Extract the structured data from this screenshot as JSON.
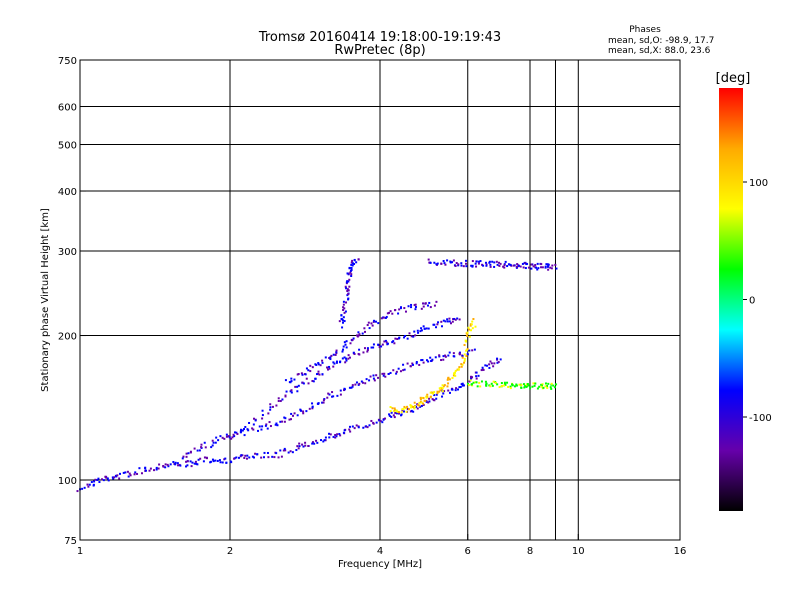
{
  "chart_data": {
    "type": "scatter",
    "title": "Tromsø 20160414 19:18:00-19:19:43",
    "subtitle": "RwPretec (8p)",
    "xlabel": "Frequency [MHz]",
    "ylabel": "Stationary phase Virtual Height [km]",
    "x_scale": "log",
    "y_scale": "log",
    "xlim": [
      1,
      16
    ],
    "ylim": [
      75,
      750
    ],
    "x_ticks": [
      1,
      2,
      4,
      6,
      8,
      10,
      16
    ],
    "y_ticks": [
      75,
      100,
      200,
      300,
      400,
      500,
      600,
      750
    ],
    "grid": true,
    "phase_info": {
      "header": "Phases",
      "o_line": "mean, sd,O: -98.9, 17.7",
      "x_line": "mean, sd,X: 88.0, 23.6"
    },
    "colorbar": {
      "label": "[deg]",
      "range": [
        -180,
        180
      ],
      "ticks": [
        100,
        0,
        -100
      ],
      "stops": [
        "#ff0000",
        "#ffaa00",
        "#ffff00",
        "#00ff00",
        "#00ffff",
        "#0000ff",
        "#6600aa",
        "#000000"
      ]
    },
    "traces": [
      {
        "name": "",
        "phase": -100,
        "points": [
          [
            1.0,
            96
          ],
          [
            1.1,
            100
          ],
          [
            1.2,
            102
          ],
          [
            1.35,
            105
          ],
          [
            1.5,
            108
          ],
          [
            1.65,
            108
          ],
          [
            1.8,
            110
          ],
          [
            2.0,
            110
          ],
          [
            2.2,
            112
          ],
          [
            2.5,
            113
          ],
          [
            2.8,
            118
          ],
          [
            3.1,
            122
          ],
          [
            3.4,
            126
          ],
          [
            3.8,
            131
          ],
          [
            4.2,
            136
          ],
          [
            4.6,
            140
          ],
          [
            5.0,
            146
          ],
          [
            5.5,
            153
          ],
          [
            6.0,
            160
          ],
          [
            6.5,
            170
          ],
          [
            7.0,
            180
          ]
        ]
      },
      {
        "name": "",
        "phase": -100,
        "points": [
          [
            1.6,
            112
          ],
          [
            1.8,
            118
          ],
          [
            2.0,
            124
          ],
          [
            2.3,
            128
          ],
          [
            2.6,
            134
          ],
          [
            2.9,
            142
          ],
          [
            3.2,
            150
          ],
          [
            3.6,
            158
          ],
          [
            4.0,
            165
          ],
          [
            4.5,
            172
          ],
          [
            5.0,
            178
          ],
          [
            5.6,
            182
          ],
          [
            6.2,
            185
          ]
        ]
      },
      {
        "name": "",
        "phase": -100,
        "points": [
          [
            2.0,
            122
          ],
          [
            2.3,
            136
          ],
          [
            2.6,
            150
          ],
          [
            2.9,
            162
          ],
          [
            3.2,
            172
          ],
          [
            3.5,
            182
          ],
          [
            3.9,
            190
          ],
          [
            4.3,
            196
          ],
          [
            4.8,
            204
          ],
          [
            5.3,
            212
          ],
          [
            5.8,
            218
          ]
        ]
      },
      {
        "name": "",
        "phase": -100,
        "points": [
          [
            2.6,
            160
          ],
          [
            2.9,
            170
          ],
          [
            3.2,
            182
          ],
          [
            3.5,
            195
          ],
          [
            3.8,
            210
          ],
          [
            4.2,
            222
          ],
          [
            4.7,
            230
          ],
          [
            5.2,
            232
          ]
        ]
      },
      {
        "name": "",
        "phase": -100,
        "points": [
          [
            3.35,
            210
          ],
          [
            3.4,
            230
          ],
          [
            3.45,
            255
          ],
          [
            3.5,
            275
          ],
          [
            3.6,
            290
          ]
        ]
      },
      {
        "name": "",
        "phase": 100,
        "points": [
          [
            4.2,
            140
          ],
          [
            4.5,
            140
          ],
          [
            4.8,
            145
          ],
          [
            5.0,
            150
          ],
          [
            5.3,
            155
          ],
          [
            5.6,
            165
          ],
          [
            5.9,
            175
          ],
          [
            6.0,
            200
          ],
          [
            6.2,
            215
          ]
        ]
      },
      {
        "name": "",
        "phase": -100,
        "points": [
          [
            5.0,
            285
          ],
          [
            5.5,
            283
          ],
          [
            6.0,
            282
          ],
          [
            6.5,
            282
          ],
          [
            7.0,
            281
          ],
          [
            7.5,
            280
          ],
          [
            8.0,
            279
          ],
          [
            8.5,
            278
          ],
          [
            9.0,
            278
          ]
        ]
      },
      {
        "name": "",
        "phase": 40,
        "points": [
          [
            6.0,
            160
          ],
          [
            6.5,
            158
          ],
          [
            7.0,
            158
          ],
          [
            7.5,
            157
          ],
          [
            8.0,
            157
          ],
          [
            8.5,
            157
          ],
          [
            9.0,
            156
          ]
        ]
      }
    ]
  }
}
